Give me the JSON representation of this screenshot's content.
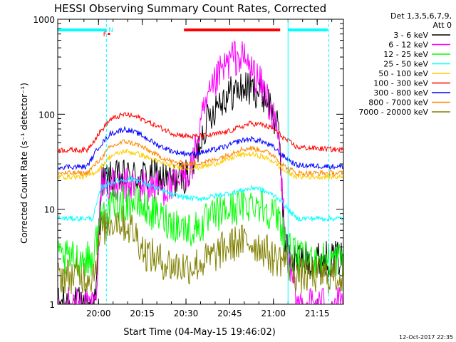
{
  "chart_data": {
    "type": "line",
    "title": "HESSI Observing Summary Count Rates, Corrected",
    "xlabel": "Start Time (04-May-15 19:46:02)",
    "ylabel": "Corrected Count Rate (s⁻¹ detector⁻¹)",
    "yscale": "log",
    "ylim": [
      1,
      1000
    ],
    "x_unit": "minutes since 19:46:02",
    "xlim": [
      0,
      98
    ],
    "x_ticks": [
      {
        "x": 14,
        "label": "20:00"
      },
      {
        "x": 29,
        "label": "20:15"
      },
      {
        "x": 44,
        "label": "20:30"
      },
      {
        "x": 59,
        "label": "20:45"
      },
      {
        "x": 74,
        "label": "21:00"
      },
      {
        "x": 89,
        "label": "21:15"
      }
    ],
    "y_ticks": [
      {
        "y": 1,
        "label": "1"
      },
      {
        "y": 10,
        "label": "10"
      },
      {
        "y": 100,
        "label": "100"
      },
      {
        "y": 1000,
        "label": "1000"
      }
    ],
    "legend": {
      "placement": "right",
      "header": [
        "Det 1,3,5,6,7,9,",
        "Att 0"
      ]
    },
    "series": [
      {
        "name": "3 - 6 keV",
        "color": "#000000",
        "x": [
          0,
          13,
          15,
          20,
          26,
          33,
          40,
          46,
          50,
          55,
          60,
          64,
          68,
          72,
          76,
          78,
          80,
          82
        ],
        "y": [
          1,
          1,
          20,
          21,
          22,
          22,
          20,
          25,
          70,
          140,
          170,
          190,
          180,
          150,
          60,
          4,
          3,
          3
        ]
      },
      {
        "name": "6 - 12 keV",
        "color": "#ff00ff",
        "x": [
          0,
          13,
          15,
          20,
          26,
          33,
          40,
          46,
          50,
          55,
          60,
          64,
          68,
          72,
          76,
          78,
          80,
          82
        ],
        "y": [
          1,
          1,
          20,
          17,
          18,
          17,
          17,
          28,
          100,
          250,
          400,
          380,
          250,
          150,
          50,
          5,
          2,
          1
        ]
      },
      {
        "name": "12 - 25 keV",
        "color": "#00ff00",
        "x": [
          0,
          12,
          15,
          20,
          26,
          33,
          40,
          46,
          50,
          55,
          60,
          64,
          68,
          72,
          76,
          79,
          82,
          98
        ],
        "y": [
          3,
          3,
          9,
          11,
          12,
          9,
          7,
          6,
          7,
          9,
          10,
          11,
          12,
          10,
          8,
          4,
          3,
          3
        ]
      },
      {
        "name": "25 - 50 keV",
        "color": "#00ffff",
        "x": [
          0,
          12,
          15,
          20,
          26,
          33,
          40,
          46,
          50,
          55,
          60,
          64,
          68,
          72,
          76,
          79,
          82,
          98
        ],
        "y": [
          8,
          8,
          17,
          20,
          21,
          17,
          14,
          13,
          13,
          14,
          15,
          16,
          17,
          15,
          13,
          10,
          8,
          8
        ]
      },
      {
        "name": "50 - 100 keV",
        "color": "#ffcc00",
        "x": [
          0,
          10,
          14,
          18,
          23,
          28,
          34,
          40,
          46,
          52,
          58,
          62,
          66,
          70,
          74,
          78,
          82,
          98
        ],
        "y": [
          22,
          22,
          26,
          36,
          41,
          38,
          32,
          28,
          27,
          29,
          33,
          37,
          38,
          36,
          32,
          25,
          22,
          22
        ]
      },
      {
        "name": "100 - 300 keV",
        "color": "#ff0000",
        "x": [
          0,
          10,
          14,
          18,
          23,
          28,
          34,
          40,
          46,
          52,
          58,
          62,
          66,
          70,
          74,
          78,
          82,
          98
        ],
        "y": [
          42,
          42,
          62,
          88,
          100,
          92,
          75,
          62,
          58,
          60,
          65,
          72,
          80,
          78,
          70,
          55,
          45,
          42
        ]
      },
      {
        "name": "300 - 800 keV",
        "color": "#0000ff",
        "x": [
          0,
          10,
          14,
          18,
          23,
          28,
          34,
          40,
          46,
          52,
          58,
          62,
          66,
          70,
          74,
          78,
          82,
          98
        ],
        "y": [
          28,
          28,
          45,
          62,
          70,
          62,
          48,
          40,
          38,
          41,
          46,
          52,
          55,
          52,
          45,
          35,
          29,
          28
        ]
      },
      {
        "name": "800 - 7000 keV",
        "color": "#ff8800",
        "x": [
          0,
          10,
          14,
          18,
          23,
          28,
          34,
          40,
          46,
          52,
          58,
          62,
          66,
          70,
          74,
          78,
          82,
          98
        ],
        "y": [
          24,
          24,
          32,
          45,
          52,
          47,
          37,
          31,
          30,
          32,
          37,
          42,
          44,
          42,
          37,
          28,
          24,
          24
        ]
      },
      {
        "name": "7000 - 20000 keV",
        "color": "#808000",
        "x": [
          0,
          12,
          15,
          20,
          26,
          30,
          34,
          40,
          46,
          52,
          58,
          62,
          66,
          70,
          74,
          78,
          82,
          98
        ],
        "y": [
          2,
          2,
          6,
          8,
          6,
          3.5,
          3,
          2.5,
          2.5,
          3,
          4,
          4.5,
          4.5,
          4,
          3,
          3,
          2,
          2
        ]
      }
    ],
    "annotations": [
      {
        "text": "F",
        "x": 16.2,
        "color": "#ff0000"
      },
      {
        "text": "N",
        "x": 18.2,
        "color": "#00ffff"
      }
    ],
    "timeline_bars": [
      {
        "color": "#00ffff",
        "x0": 0,
        "x1": 16.7
      },
      {
        "color": "#ff0000",
        "x0": 43.3,
        "x1": 76.3
      },
      {
        "color": "#00ffff",
        "x0": 79.0,
        "x1": 98
      }
    ],
    "marker_lines": [
      {
        "x": 16.7,
        "color": "#00ffff",
        "style": "dashed"
      },
      {
        "x": 79.0,
        "color": "#00ffff",
        "style": "solid"
      },
      {
        "x": 93.0,
        "color": "#00ffff",
        "style": "dashed"
      }
    ],
    "footer_text": "12-Oct-2017 22:35"
  }
}
